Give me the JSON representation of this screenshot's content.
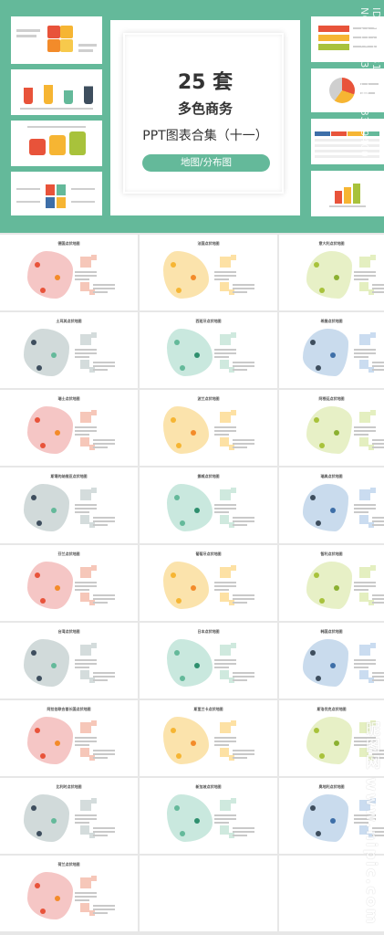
{
  "cover": {
    "count": "25 套",
    "subtitle": "多色商务",
    "product": "PPT图表合集（十一）",
    "tag": "地图/分布图"
  },
  "watermark": {
    "id": "ID:36150311 NO:20220306140233294000",
    "site": "昵图网 www.nipic.com"
  },
  "colors": {
    "accent": "#64b99a",
    "pink": "#f4c3c2",
    "yellow": "#fbe2a8",
    "mint": "#c6e7dc",
    "grey": "#cfd8d8",
    "blue": "#c6d9ec",
    "lime": "#e6efc3"
  },
  "slides": [
    {
      "title": "德国点状地图",
      "theme": "pink"
    },
    {
      "title": "法国点状地图",
      "theme": "yellow"
    },
    {
      "title": "意大利点状地图",
      "theme": "lime"
    },
    {
      "title": "土耳其点状地图",
      "theme": "grey"
    },
    {
      "title": "西班牙点状地图",
      "theme": "mint"
    },
    {
      "title": "希腊点状地图",
      "theme": "blue"
    },
    {
      "title": "瑞士点状地图",
      "theme": "pink"
    },
    {
      "title": "波兰点状地图",
      "theme": "yellow"
    },
    {
      "title": "阿根廷点状地图",
      "theme": "lime"
    },
    {
      "title": "斯堪的纳维亚点状地图",
      "theme": "grey"
    },
    {
      "title": "挪威点状地图",
      "theme": "mint"
    },
    {
      "title": "瑞典点状地图",
      "theme": "blue"
    },
    {
      "title": "芬兰点状地图",
      "theme": "pink"
    },
    {
      "title": "葡萄牙点状地图",
      "theme": "yellow"
    },
    {
      "title": "智利点状地图",
      "theme": "lime"
    },
    {
      "title": "台湾点状地图",
      "theme": "grey"
    },
    {
      "title": "日本点状地图",
      "theme": "mint"
    },
    {
      "title": "韩国点状地图",
      "theme": "blue"
    },
    {
      "title": "阿拉伯联合酋长国点状地图",
      "theme": "pink"
    },
    {
      "title": "斯里兰卡点状地图",
      "theme": "yellow"
    },
    {
      "title": "斯洛伐克点状地图",
      "theme": "lime"
    },
    {
      "title": "比利时点状地图",
      "theme": "grey"
    },
    {
      "title": "新加坡点状地图",
      "theme": "mint"
    },
    {
      "title": "奥地利点状地图",
      "theme": "blue"
    },
    {
      "title": "荷兰点状地图",
      "theme": "pink"
    }
  ]
}
